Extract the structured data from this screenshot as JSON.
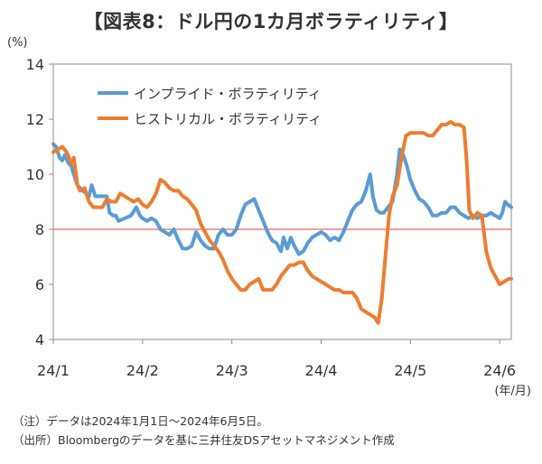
{
  "chart_data": {
    "type": "line",
    "title": "【図表8：ドル円の1カ月ボラティリティ】",
    "ylabel": "(%)",
    "xlabel": "",
    "x_unit_label": "(年/月)",
    "ylim": [
      4,
      14
    ],
    "yticks": [
      "4",
      "6",
      "8",
      "10",
      "12",
      "14"
    ],
    "xticks": [
      "24/1",
      "24/2",
      "24/3",
      "24/4",
      "24/5",
      "24/6"
    ],
    "x_range_months": [
      0,
      5.13
    ],
    "legend_position": "top-left",
    "reference_line": {
      "value": 8,
      "color": "#e03c3c"
    },
    "series": [
      {
        "name": "インプライド・ボラティリティ",
        "color": "#5b9bd5",
        "points": [
          [
            0.0,
            11.1
          ],
          [
            0.03,
            11.0
          ],
          [
            0.07,
            10.6
          ],
          [
            0.1,
            10.5
          ],
          [
            0.13,
            10.7
          ],
          [
            0.17,
            10.4
          ],
          [
            0.2,
            10.3
          ],
          [
            0.23,
            10.0
          ],
          [
            0.27,
            9.6
          ],
          [
            0.3,
            9.5
          ],
          [
            0.33,
            9.4
          ],
          [
            0.37,
            9.3
          ],
          [
            0.4,
            9.2
          ],
          [
            0.43,
            9.6
          ],
          [
            0.47,
            9.2
          ],
          [
            0.53,
            9.2
          ],
          [
            0.6,
            9.2
          ],
          [
            0.63,
            8.6
          ],
          [
            0.67,
            8.5
          ],
          [
            0.7,
            8.5
          ],
          [
            0.73,
            8.3
          ],
          [
            0.8,
            8.4
          ],
          [
            0.87,
            8.5
          ],
          [
            0.93,
            8.8
          ],
          [
            0.97,
            8.5
          ],
          [
            1.0,
            8.4
          ],
          [
            1.05,
            8.3
          ],
          [
            1.1,
            8.4
          ],
          [
            1.15,
            8.3
          ],
          [
            1.2,
            8.0
          ],
          [
            1.25,
            7.9
          ],
          [
            1.3,
            7.8
          ],
          [
            1.35,
            8.0
          ],
          [
            1.4,
            7.6
          ],
          [
            1.45,
            7.3
          ],
          [
            1.5,
            7.3
          ],
          [
            1.55,
            7.4
          ],
          [
            1.6,
            7.9
          ],
          [
            1.65,
            7.6
          ],
          [
            1.7,
            7.4
          ],
          [
            1.75,
            7.3
          ],
          [
            1.8,
            7.3
          ],
          [
            1.85,
            7.8
          ],
          [
            1.9,
            8.0
          ],
          [
            1.95,
            7.8
          ],
          [
            2.0,
            7.8
          ],
          [
            2.05,
            8.0
          ],
          [
            2.1,
            8.5
          ],
          [
            2.15,
            8.9
          ],
          [
            2.2,
            9.0
          ],
          [
            2.25,
            9.1
          ],
          [
            2.3,
            8.7
          ],
          [
            2.35,
            8.3
          ],
          [
            2.4,
            7.9
          ],
          [
            2.45,
            7.6
          ],
          [
            2.5,
            7.5
          ],
          [
            2.55,
            7.2
          ],
          [
            2.58,
            7.7
          ],
          [
            2.62,
            7.3
          ],
          [
            2.66,
            7.7
          ],
          [
            2.7,
            7.4
          ],
          [
            2.75,
            7.1
          ],
          [
            2.8,
            7.2
          ],
          [
            2.85,
            7.5
          ],
          [
            2.9,
            7.7
          ],
          [
            2.95,
            7.8
          ],
          [
            3.0,
            7.9
          ],
          [
            3.05,
            7.8
          ],
          [
            3.1,
            7.6
          ],
          [
            3.15,
            7.7
          ],
          [
            3.2,
            7.6
          ],
          [
            3.25,
            7.9
          ],
          [
            3.3,
            8.3
          ],
          [
            3.35,
            8.7
          ],
          [
            3.4,
            8.9
          ],
          [
            3.45,
            9.0
          ],
          [
            3.5,
            9.4
          ],
          [
            3.55,
            10.0
          ],
          [
            3.58,
            9.2
          ],
          [
            3.62,
            8.7
          ],
          [
            3.66,
            8.6
          ],
          [
            3.7,
            8.6
          ],
          [
            3.75,
            8.8
          ],
          [
            3.8,
            9.0
          ],
          [
            3.85,
            10.0
          ],
          [
            3.88,
            10.9
          ],
          [
            3.92,
            10.7
          ],
          [
            3.96,
            10.3
          ],
          [
            4.0,
            9.8
          ],
          [
            4.05,
            9.4
          ],
          [
            4.1,
            9.1
          ],
          [
            4.15,
            9.0
          ],
          [
            4.2,
            8.8
          ],
          [
            4.25,
            8.5
          ],
          [
            4.3,
            8.5
          ],
          [
            4.35,
            8.6
          ],
          [
            4.4,
            8.6
          ],
          [
            4.45,
            8.8
          ],
          [
            4.5,
            8.8
          ],
          [
            4.55,
            8.6
          ],
          [
            4.6,
            8.5
          ],
          [
            4.65,
            8.4
          ],
          [
            4.7,
            8.5
          ],
          [
            4.75,
            8.4
          ],
          [
            4.8,
            8.5
          ],
          [
            4.85,
            8.5
          ],
          [
            4.9,
            8.6
          ],
          [
            4.95,
            8.5
          ],
          [
            5.0,
            8.4
          ],
          [
            5.03,
            8.6
          ],
          [
            5.06,
            9.0
          ],
          [
            5.09,
            8.9
          ],
          [
            5.13,
            8.8
          ]
        ]
      },
      {
        "name": "ヒストリカル・ボラティリティ",
        "color": "#ed7d31",
        "points": [
          [
            0.0,
            10.8
          ],
          [
            0.05,
            10.9
          ],
          [
            0.1,
            11.0
          ],
          [
            0.15,
            10.8
          ],
          [
            0.2,
            10.4
          ],
          [
            0.23,
            10.6
          ],
          [
            0.27,
            9.6
          ],
          [
            0.3,
            9.4
          ],
          [
            0.35,
            9.5
          ],
          [
            0.4,
            9.0
          ],
          [
            0.45,
            8.8
          ],
          [
            0.5,
            8.8
          ],
          [
            0.55,
            8.8
          ],
          [
            0.6,
            9.1
          ],
          [
            0.65,
            9.0
          ],
          [
            0.7,
            9.0
          ],
          [
            0.75,
            9.3
          ],
          [
            0.8,
            9.2
          ],
          [
            0.85,
            9.1
          ],
          [
            0.9,
            9.0
          ],
          [
            0.95,
            9.1
          ],
          [
            1.0,
            8.9
          ],
          [
            1.05,
            8.8
          ],
          [
            1.1,
            9.0
          ],
          [
            1.15,
            9.3
          ],
          [
            1.2,
            9.8
          ],
          [
            1.25,
            9.7
          ],
          [
            1.3,
            9.5
          ],
          [
            1.35,
            9.4
          ],
          [
            1.4,
            9.4
          ],
          [
            1.45,
            9.2
          ],
          [
            1.5,
            9.1
          ],
          [
            1.55,
            8.9
          ],
          [
            1.6,
            8.7
          ],
          [
            1.65,
            8.2
          ],
          [
            1.7,
            7.9
          ],
          [
            1.75,
            7.6
          ],
          [
            1.8,
            7.4
          ],
          [
            1.85,
            7.2
          ],
          [
            1.9,
            6.9
          ],
          [
            1.95,
            6.5
          ],
          [
            2.0,
            6.2
          ],
          [
            2.05,
            6.0
          ],
          [
            2.1,
            5.8
          ],
          [
            2.15,
            5.8
          ],
          [
            2.2,
            6.0
          ],
          [
            2.25,
            6.1
          ],
          [
            2.3,
            6.2
          ],
          [
            2.35,
            5.8
          ],
          [
            2.4,
            5.8
          ],
          [
            2.45,
            5.8
          ],
          [
            2.5,
            6.0
          ],
          [
            2.55,
            6.3
          ],
          [
            2.6,
            6.5
          ],
          [
            2.65,
            6.7
          ],
          [
            2.7,
            6.7
          ],
          [
            2.75,
            6.8
          ],
          [
            2.8,
            6.8
          ],
          [
            2.85,
            6.5
          ],
          [
            2.9,
            6.3
          ],
          [
            2.95,
            6.2
          ],
          [
            3.0,
            6.1
          ],
          [
            3.05,
            6.0
          ],
          [
            3.1,
            5.9
          ],
          [
            3.15,
            5.8
          ],
          [
            3.2,
            5.8
          ],
          [
            3.25,
            5.7
          ],
          [
            3.3,
            5.7
          ],
          [
            3.35,
            5.7
          ],
          [
            3.4,
            5.5
          ],
          [
            3.45,
            5.1
          ],
          [
            3.5,
            5.0
          ],
          [
            3.55,
            4.9
          ],
          [
            3.6,
            4.8
          ],
          [
            3.64,
            4.6
          ],
          [
            3.68,
            5.5
          ],
          [
            3.72,
            7.0
          ],
          [
            3.76,
            8.5
          ],
          [
            3.8,
            9.2
          ],
          [
            3.85,
            9.6
          ],
          [
            3.9,
            10.6
          ],
          [
            3.95,
            11.4
          ],
          [
            4.0,
            11.5
          ],
          [
            4.05,
            11.5
          ],
          [
            4.1,
            11.5
          ],
          [
            4.15,
            11.5
          ],
          [
            4.2,
            11.4
          ],
          [
            4.25,
            11.4
          ],
          [
            4.3,
            11.6
          ],
          [
            4.35,
            11.8
          ],
          [
            4.4,
            11.8
          ],
          [
            4.45,
            11.9
          ],
          [
            4.5,
            11.8
          ],
          [
            4.55,
            11.8
          ],
          [
            4.6,
            11.7
          ],
          [
            4.63,
            10.5
          ],
          [
            4.66,
            8.7
          ],
          [
            4.7,
            8.4
          ],
          [
            4.75,
            8.6
          ],
          [
            4.8,
            8.5
          ],
          [
            4.85,
            7.2
          ],
          [
            4.9,
            6.6
          ],
          [
            4.95,
            6.3
          ],
          [
            5.0,
            6.0
          ],
          [
            5.05,
            6.1
          ],
          [
            5.1,
            6.2
          ],
          [
            5.13,
            6.2
          ]
        ]
      }
    ]
  },
  "notes": [
    "（注）データは2024年1月1日～2024年6月5日。",
    "（出所）Bloombergのデータを基に三井住友DSアセットマネジメント作成"
  ]
}
